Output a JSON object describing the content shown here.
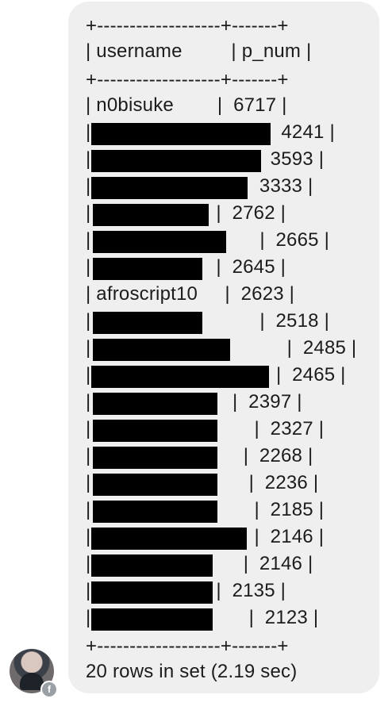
{
  "message": {
    "border_top": "+-------------------+-------+",
    "header_row": "| username         | p_num |",
    "border_mid": "+-------------------+-------+",
    "rows": [
      "| n0bisuke        |  6717 |",
      "|                                |  4241 |",
      "|                              |  3593 |",
      "|                            |  3333 |",
      "|                       |  2762 |",
      "|                               |  2665 |",
      "|                       |  2645 |",
      "| afroscript10     |  2623 |",
      "|                               |  2518 |",
      "|                                    |  2485 |",
      "|                                  |  2465 |",
      "|                          |  2397 |",
      "|                              |  2327 |",
      "|                            |  2268 |",
      "|                             |  2236 |",
      "|                              |  2185 |",
      "|                              |  2146 |",
      "|                            |  2146 |",
      "|                       |  2135 |",
      "|                             |  2123 |"
    ],
    "border_bottom": "+-------------------+-------+",
    "footer": "20 rows in set (2.19 sec)"
  },
  "sender": {
    "avatar": "user-avatar",
    "badge_icon": "facebook-icon",
    "badge_glyph": "f"
  }
}
